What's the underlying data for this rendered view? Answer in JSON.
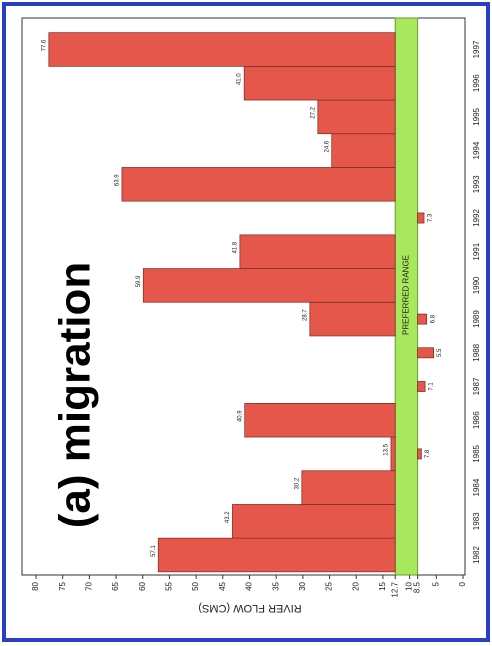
{
  "chart_data": {
    "type": "bar",
    "title": "(a) migration",
    "ylabel": "RIVER FLOW (CMS)",
    "range_label": "PREFERRED RANGE",
    "range": [
      8.5,
      12.7
    ],
    "categories": [
      "1982",
      "1983",
      "1984",
      "1985",
      "1986",
      "1987",
      "1988",
      "1989",
      "1990",
      "1991",
      "1992",
      "1993",
      "1994",
      "1995",
      "1996",
      "1997"
    ],
    "values": [
      57.1,
      43.2,
      30.2,
      13.5,
      40.9,
      null,
      null,
      28.7,
      59.9,
      41.8,
      null,
      63.9,
      24.6,
      27.2,
      41,
      77.6
    ],
    "value_labels": [
      "57.1",
      "43.2",
      "30.2",
      "13.5",
      "40.9",
      null,
      null,
      "28.7",
      "59.9",
      "41.8",
      null,
      "63.9",
      "24.6",
      "27.2",
      "41.0",
      "77.6"
    ],
    "low_values": [
      null,
      null,
      null,
      7.8,
      null,
      7.1,
      5.5,
      6.8,
      null,
      null,
      7.3,
      null,
      null,
      null,
      null,
      null
    ],
    "color": "#e5564b",
    "range_color": "#a8e85c",
    "ylim": [
      0,
      80
    ],
    "yticks": [
      0,
      5,
      8.5,
      10,
      12.7,
      15,
      20,
      25,
      30,
      35,
      40,
      45,
      50,
      55,
      60,
      65,
      70,
      75,
      80
    ]
  }
}
